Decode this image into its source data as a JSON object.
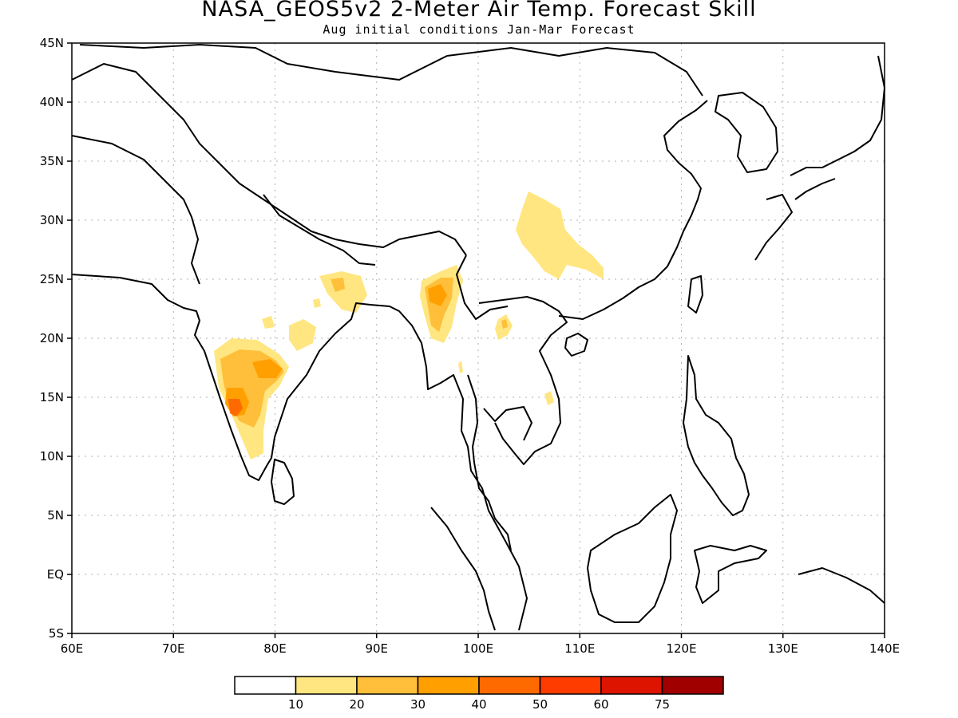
{
  "title": "NASA_GEOS5v2 2-Meter Air Temp. Forecast Skill",
  "subtitle": "Aug initial conditions  Jan-Mar Forecast",
  "map": {
    "lon_range": [
      60,
      140
    ],
    "lat_range": [
      -5,
      45
    ],
    "lon_ticks": [
      "60E",
      "70E",
      "80E",
      "90E",
      "100E",
      "110E",
      "120E",
      "130E",
      "140E"
    ],
    "lat_ticks": [
      "45N",
      "40N",
      "35N",
      "30N",
      "25N",
      "20N",
      "15N",
      "10N",
      "5N",
      "EQ",
      "5S"
    ],
    "grid": true
  },
  "legend": {
    "colors": [
      "#ffffff",
      "#ffe680",
      "#ffbf3a",
      "#ffa000",
      "#ff6a00",
      "#ff3c00",
      "#dc1400",
      "#a00000"
    ],
    "labels": [
      "10",
      "20",
      "30",
      "40",
      "50",
      "60",
      "75"
    ]
  }
}
